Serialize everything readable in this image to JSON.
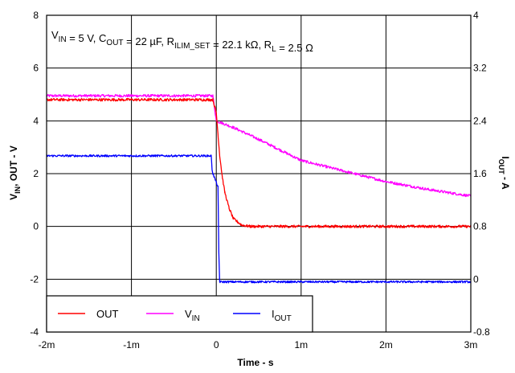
{
  "chart_data": {
    "type": "line",
    "title": "",
    "conditions_parts": [
      {
        "text": "V"
      },
      {
        "sub": "IN"
      },
      {
        "text": " = 5 V, C"
      },
      {
        "sub": "OUT"
      },
      {
        "text": " = 22 µF, R"
      },
      {
        "sub": "ILIM_SET"
      },
      {
        "text": " = 22.1 kΩ, R"
      },
      {
        "sub": "L"
      },
      {
        "text": " = 2.5 Ω"
      }
    ],
    "xlabel": "Time - s",
    "ylabel_left": {
      "main": "V",
      "sub": "IN",
      "rest": ", OUT - V"
    },
    "ylabel_right": {
      "main": "I",
      "sub": "OUT",
      "rest": " - A"
    },
    "x_ticks": [
      {
        "value": -0.002,
        "label": "-2m"
      },
      {
        "value": -0.001,
        "label": "-1m"
      },
      {
        "value": 0,
        "label": "0"
      },
      {
        "value": 0.001,
        "label": "1m"
      },
      {
        "value": 0.002,
        "label": "2m"
      },
      {
        "value": 0.003,
        "label": "3m"
      }
    ],
    "left_ticks": [
      {
        "value": 8,
        "label": "8"
      },
      {
        "value": 6,
        "label": "6"
      },
      {
        "value": 4,
        "label": "4"
      },
      {
        "value": 2,
        "label": "2"
      },
      {
        "value": 0,
        "label": "0"
      },
      {
        "value": -2,
        "label": "-2"
      },
      {
        "value": -4,
        "label": "-4"
      }
    ],
    "right_ticks": [
      {
        "value": 4,
        "label": "4"
      },
      {
        "value": 3.2,
        "label": "3.2"
      },
      {
        "value": 2.4,
        "label": "2.4"
      },
      {
        "value": 1.6,
        "label": "1.6"
      },
      {
        "value": 0.8,
        "label": "0.8"
      },
      {
        "value": 0,
        "label": "0"
      },
      {
        "value": -0.8,
        "label": "-0.8"
      }
    ],
    "xlim": [
      -0.002,
      0.003
    ],
    "ylim_left": [
      -4,
      8
    ],
    "ylim_right": [
      -0.8,
      4
    ],
    "grid": true,
    "legend_position": "bottom-left",
    "series": [
      {
        "name": "OUT",
        "legend_main": "OUT",
        "legend_sub": "",
        "color": "#ff0000",
        "axis": "left",
        "noise": 0.05,
        "x": [
          -0.002,
          -4e-05,
          0.0,
          2e-05,
          4e-05,
          7e-05,
          0.0001,
          0.00015,
          0.0002,
          0.0003,
          0.0004,
          0.0005,
          0.003
        ],
        "y": [
          4.8,
          4.8,
          4.3,
          3.5,
          2.7,
          1.9,
          1.3,
          0.7,
          0.3,
          0.05,
          0.0,
          0.0,
          0.0
        ]
      },
      {
        "name": "VIN",
        "legend_main": "V",
        "legend_sub": "IN",
        "color": "#ff00ff",
        "axis": "left",
        "noise": 0.05,
        "x": [
          -0.002,
          -4e-05,
          0.0,
          0.0002,
          0.0005,
          0.001,
          0.0015,
          0.002,
          0.0025,
          0.003
        ],
        "y": [
          4.95,
          4.95,
          4.0,
          3.75,
          3.3,
          2.5,
          2.1,
          1.7,
          1.4,
          1.15
        ]
      },
      {
        "name": "IOUT",
        "legend_main": "I",
        "legend_sub": "OUT",
        "color": "#0000ff",
        "axis": "right",
        "noise": 0.015,
        "x": [
          -0.002,
          -6e-05,
          -5e-05,
          -4e-05,
          2e-05,
          3e-05,
          4e-05,
          0.003
        ],
        "y": [
          1.87,
          1.87,
          1.67,
          1.6,
          1.4,
          0.4,
          -0.04,
          -0.04
        ]
      }
    ]
  }
}
